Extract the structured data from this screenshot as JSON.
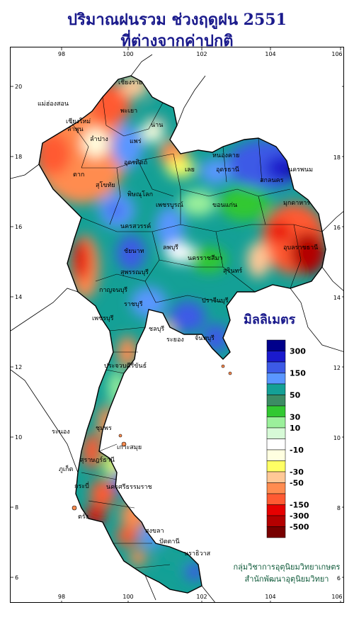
{
  "title": {
    "line1": "ปริมาณฝนรวม ช่วงฤดูฝน 2551",
    "line2": "ที่ต่างจากค่าปกติ"
  },
  "axes": {
    "longitude_ticks": [
      "98",
      "100",
      "102",
      "104",
      "106"
    ],
    "latitude_ticks": [
      "20",
      "18",
      "16",
      "14",
      "12",
      "10",
      "8",
      "6"
    ]
  },
  "legend": {
    "unit": "มิลลิเมตร",
    "labels": [
      "300",
      "150",
      "50",
      "30",
      "10",
      "-10",
      "-30",
      "-50",
      "-150",
      "-300",
      "-500"
    ],
    "colors": [
      "#00008b",
      "#1a1acd",
      "#3c5ae6",
      "#5a96ff",
      "#14a096",
      "#3c8c64",
      "#32c832",
      "#9bf09b",
      "#d7fad7",
      "#ffffff",
      "#ffffe0",
      "#ffff64",
      "#ffc896",
      "#ff8c50",
      "#ff5a32",
      "#e60000",
      "#b40000",
      "#780000"
    ]
  },
  "places": [
    {
      "name": "เชียงราย"
    },
    {
      "name": "แม่ฮ่องสอน"
    },
    {
      "name": "เชียงใหม่"
    },
    {
      "name": "ลำพูน"
    },
    {
      "name": "ลำปาง"
    },
    {
      "name": "พะเยา"
    },
    {
      "name": "น่าน"
    },
    {
      "name": "แพร่"
    },
    {
      "name": "อุตรดิตถ์"
    },
    {
      "name": "ตาก"
    },
    {
      "name": "สุโขทัย"
    },
    {
      "name": "พิษณุโลก"
    },
    {
      "name": "เลย"
    },
    {
      "name": "หนองคาย"
    },
    {
      "name": "อุดรธานี"
    },
    {
      "name": "สกลนคร"
    },
    {
      "name": "นครพนม"
    },
    {
      "name": "มุกดาหาร"
    },
    {
      "name": "ขอนแก่น"
    },
    {
      "name": "เพชรบูรณ์"
    },
    {
      "name": "นครสวรรค์"
    },
    {
      "name": "ชัยนาท"
    },
    {
      "name": "ลพบุรี"
    },
    {
      "name": "สุพรรณบุรี"
    },
    {
      "name": "กาญจนบุรี"
    },
    {
      "name": "ราชบุรี"
    },
    {
      "name": "นครราชสีมา"
    },
    {
      "name": "สุรินทร์"
    },
    {
      "name": "อุบลราชธานี"
    },
    {
      "name": "ปราจีนบุรี"
    },
    {
      "name": "ชลบุรี"
    },
    {
      "name": "ระยอง"
    },
    {
      "name": "จันทบุรี"
    },
    {
      "name": "เพชรบุรี"
    },
    {
      "name": "ประจวบคีรีขันธ์"
    },
    {
      "name": "ชุมพร"
    },
    {
      "name": "ระนอง"
    },
    {
      "name": "สุราษฎร์ธานี"
    },
    {
      "name": "เกาะสมุย"
    },
    {
      "name": "นครศรีธรรมราช"
    },
    {
      "name": "ภูเก็ต"
    },
    {
      "name": "กระบี่"
    },
    {
      "name": "ตรัง"
    },
    {
      "name": "สงขลา"
    },
    {
      "name": "ปัตตานี"
    },
    {
      "name": "นราธิวาส"
    }
  ],
  "credit": {
    "line1": "กลุ่มวิชาการอุตุนิยมวิทยาเกษตร",
    "line2": "สำนักพัฒนาอุตุนิยมวิทยา"
  }
}
